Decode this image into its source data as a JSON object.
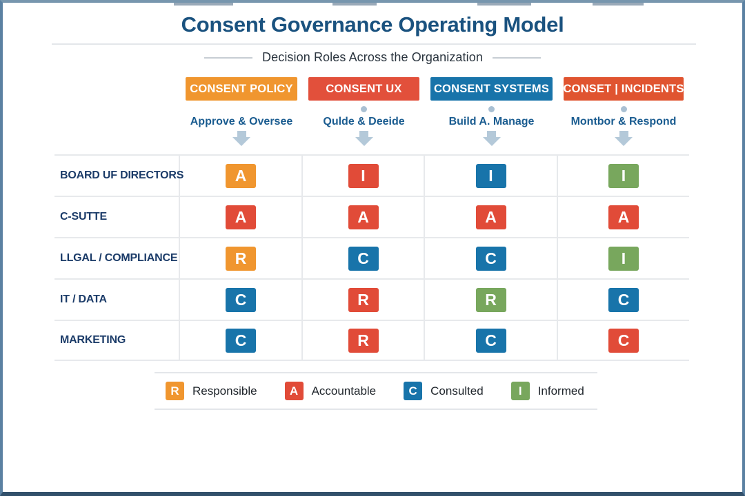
{
  "header": {
    "title": "Consent Governance Operating Model",
    "subtitle": "Decision Roles Across the Organization"
  },
  "columns": [
    {
      "label": "CONSENT POLICY",
      "color": "#f0962f",
      "sublabel": "Approve & Oversee"
    },
    {
      "label": "CONSENT UX",
      "color": "#e2503b",
      "sublabel": "Qulde & Deeide"
    },
    {
      "label": "CONSENT SYSTEMS",
      "color": "#1874aa",
      "sublabel": "Build A. Manage"
    },
    {
      "label": "CONSET | INCIDENTS",
      "color": "#e05430",
      "sublabel": "Montbor & Respond"
    }
  ],
  "rows": [
    {
      "label": "BOARD UF DIRECTORS",
      "cells": [
        {
          "letter": "A",
          "color": "#f0962f"
        },
        {
          "letter": "I",
          "color": "#e14b38"
        },
        {
          "letter": "I",
          "color": "#1874aa"
        },
        {
          "letter": "I",
          "color": "#78a75d"
        }
      ]
    },
    {
      "label": "C-SUTTE",
      "cells": [
        {
          "letter": "A",
          "color": "#e14b38"
        },
        {
          "letter": "A",
          "color": "#e14b38"
        },
        {
          "letter": "A",
          "color": "#e14b38"
        },
        {
          "letter": "A",
          "color": "#e14b38"
        }
      ]
    },
    {
      "label": "LLGAL / COMPLIANCE",
      "cells": [
        {
          "letter": "R",
          "color": "#f0962f"
        },
        {
          "letter": "C",
          "color": "#1874aa"
        },
        {
          "letter": "C",
          "color": "#1874aa"
        },
        {
          "letter": "I",
          "color": "#78a75d"
        }
      ]
    },
    {
      "label": "IT / DATA",
      "cells": [
        {
          "letter": "C",
          "color": "#1874aa"
        },
        {
          "letter": "R",
          "color": "#e14b38"
        },
        {
          "letter": "R",
          "color": "#78a75d"
        },
        {
          "letter": "C",
          "color": "#1874aa"
        }
      ]
    },
    {
      "label": "MARKETING",
      "cells": [
        {
          "letter": "C",
          "color": "#1874aa"
        },
        {
          "letter": "R",
          "color": "#e14b38"
        },
        {
          "letter": "C",
          "color": "#1874aa"
        },
        {
          "letter": "C",
          "color": "#e14b38"
        }
      ]
    }
  ],
  "legend": [
    {
      "letter": "R",
      "label": "Responsible",
      "color": "#f0962f"
    },
    {
      "letter": "A",
      "label": "Accountable",
      "color": "#e14b38"
    },
    {
      "letter": "C",
      "label": "Consulted",
      "color": "#1874aa"
    },
    {
      "letter": "I",
      "label": "Informed",
      "color": "#78a75d"
    }
  ]
}
